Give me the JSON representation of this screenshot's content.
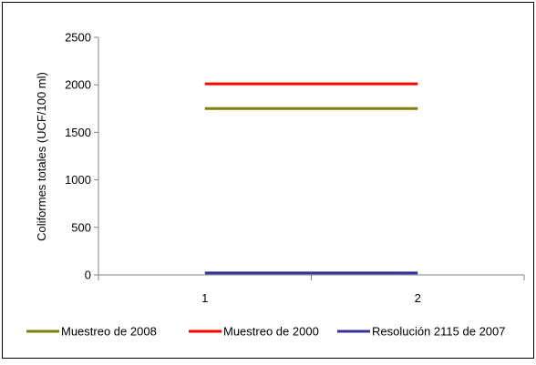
{
  "chart_data": {
    "type": "line",
    "title": "",
    "xlabel": "",
    "ylabel": "Coliformes totales (UCF/100 ml)",
    "categories": [
      "1",
      "2"
    ],
    "ylim": [
      0,
      2500
    ],
    "yticks": [
      "0",
      "500",
      "1000",
      "1500",
      "2000",
      "2500"
    ],
    "grid": false,
    "legend_position": "bottom",
    "series": [
      {
        "name": "Muestreo de 2008",
        "values": [
          1750,
          1750
        ],
        "color": "#808000"
      },
      {
        "name": "Muestreo de 2000",
        "values": [
          2010,
          2010
        ],
        "color": "#ff0000"
      },
      {
        "name": "Resolución 2115 de 2007",
        "values": [
          20,
          20
        ],
        "color": "#333399"
      }
    ]
  }
}
